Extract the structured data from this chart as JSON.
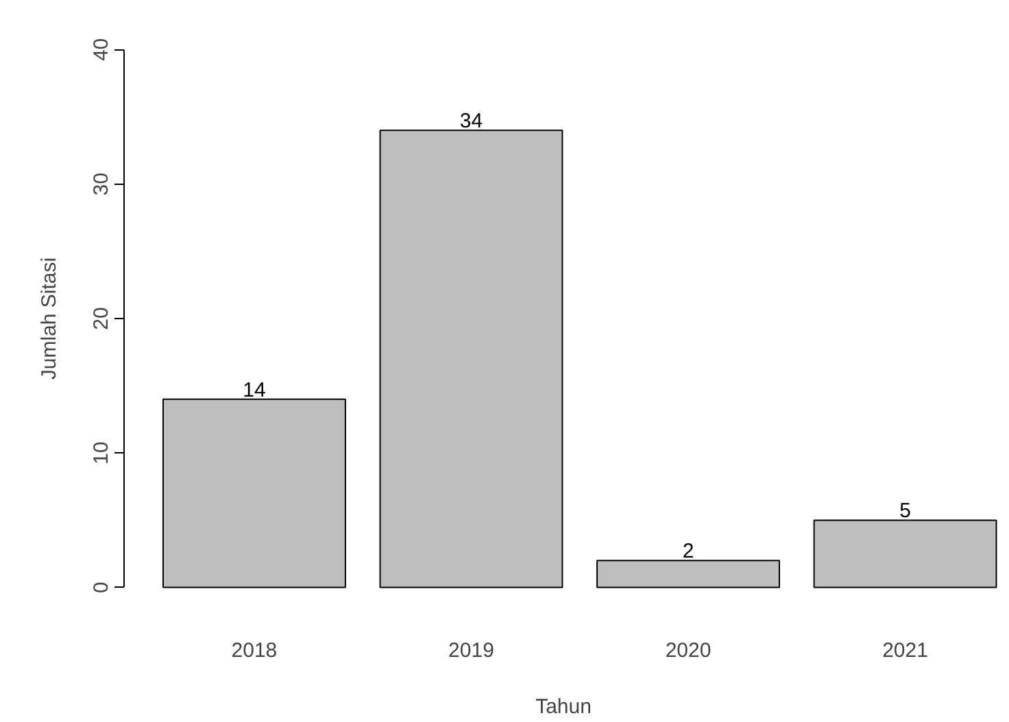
{
  "chart_data": {
    "type": "bar",
    "xlabel": "Tahun",
    "ylabel": "Jumlah Sitasi",
    "categories": [
      "2018",
      "2019",
      "2020",
      "2021"
    ],
    "values": [
      14,
      34,
      2,
      5
    ],
    "color": "#bebebe",
    "ylim": [
      0,
      40
    ],
    "yticks": [
      0,
      10,
      20,
      30,
      40
    ],
    "grid": false,
    "data_labels": true
  }
}
